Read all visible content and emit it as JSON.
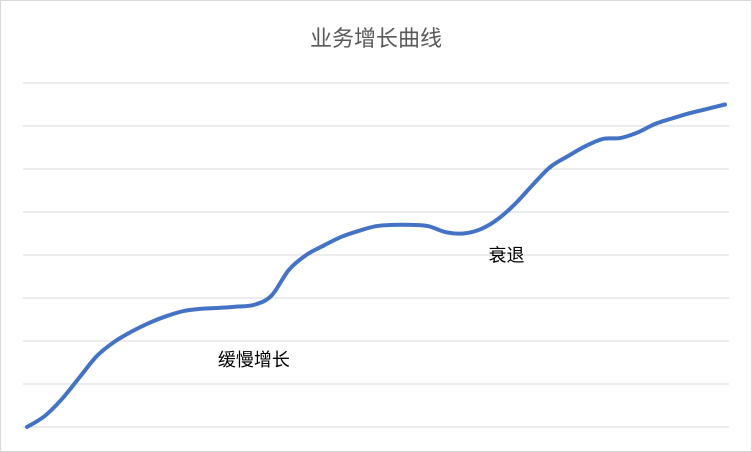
{
  "chart_data": {
    "type": "line",
    "title": "业务增长曲线",
    "xlabel": "",
    "ylabel": "",
    "ylim": [
      0,
      8
    ],
    "xlim": [
      0,
      100
    ],
    "grid": true,
    "legend": "none",
    "axis_tick_labels_shown": false,
    "series": [
      {
        "color": "#4472c4",
        "x": [
          0,
          2.5,
          5,
          7.5,
          10,
          12.5,
          15,
          17.5,
          20,
          22.5,
          25,
          27.5,
          30,
          32.5,
          35,
          37.5,
          40,
          42.5,
          45,
          47.5,
          50,
          52.5,
          55,
          57.5,
          60,
          62.5,
          65,
          67.5,
          70,
          72.5,
          75,
          77.5,
          80,
          82.5,
          85,
          87.5,
          90,
          92.5,
          95,
          97.5,
          100
        ],
        "y": [
          0.0,
          0.25,
          0.65,
          1.15,
          1.65,
          1.98,
          2.22,
          2.42,
          2.58,
          2.7,
          2.75,
          2.77,
          2.8,
          2.84,
          3.05,
          3.65,
          4.0,
          4.22,
          4.42,
          4.56,
          4.67,
          4.7,
          4.7,
          4.67,
          4.53,
          4.5,
          4.6,
          4.84,
          5.2,
          5.64,
          6.05,
          6.3,
          6.53,
          6.7,
          6.72,
          6.85,
          7.05,
          7.18,
          7.3,
          7.4,
          7.5
        ]
      }
    ],
    "annotations": [
      {
        "text": "缓慢增长",
        "x": 32.5,
        "y": 1.42
      },
      {
        "text": "衰退",
        "x": 68.7,
        "y": 3.85
      }
    ]
  }
}
